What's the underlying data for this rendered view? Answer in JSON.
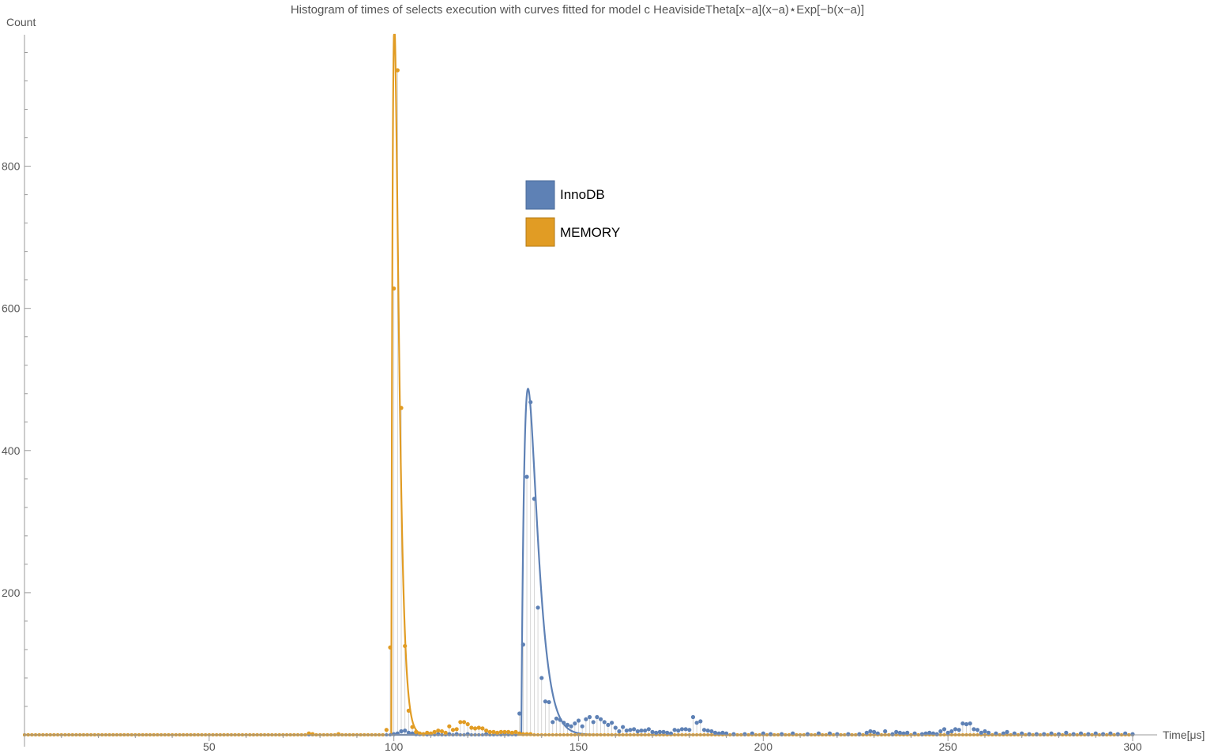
{
  "chart_data": {
    "type": "scatter",
    "title": "Histogram of times of selects execution with curves fitted for model c HeavisideTheta[x−a](x−a)⋆Exp[−b(x−a)]",
    "xlabel": "Time[μs]",
    "ylabel": "Count",
    "xlim": [
      0,
      300
    ],
    "ylim": [
      0,
      985
    ],
    "x_ticks": [
      50,
      100,
      150,
      200,
      250,
      300
    ],
    "y_ticks": [
      200,
      400,
      600,
      800
    ],
    "grid": false,
    "legend_position": "top-center",
    "series": [
      {
        "name": "InnoDB",
        "color": "#5e81b5",
        "points": [
          [
            100,
            1
          ],
          [
            101,
            2
          ],
          [
            102,
            5
          ],
          [
            103,
            6
          ],
          [
            104,
            3
          ],
          [
            105,
            2
          ],
          [
            106,
            1
          ],
          [
            107,
            1
          ],
          [
            108,
            1
          ],
          [
            110,
            1
          ],
          [
            112,
            1
          ],
          [
            115,
            1
          ],
          [
            117,
            1
          ],
          [
            120,
            1
          ],
          [
            125,
            1
          ],
          [
            128,
            1
          ],
          [
            130,
            1
          ],
          [
            132,
            1
          ],
          [
            134,
            30
          ],
          [
            135,
            127
          ],
          [
            136,
            363
          ],
          [
            137,
            468
          ],
          [
            138,
            332
          ],
          [
            139,
            179
          ],
          [
            140,
            80
          ],
          [
            141,
            47
          ],
          [
            142,
            46
          ],
          [
            143,
            18
          ],
          [
            144,
            23
          ],
          [
            145,
            21
          ],
          [
            146,
            17
          ],
          [
            147,
            14
          ],
          [
            148,
            12
          ],
          [
            149,
            16
          ],
          [
            150,
            20
          ],
          [
            151,
            12
          ],
          [
            152,
            22
          ],
          [
            153,
            25
          ],
          [
            154,
            18
          ],
          [
            155,
            25
          ],
          [
            156,
            22
          ],
          [
            157,
            18
          ],
          [
            158,
            14
          ],
          [
            159,
            17
          ],
          [
            160,
            10
          ],
          [
            161,
            5
          ],
          [
            162,
            11
          ],
          [
            163,
            6
          ],
          [
            164,
            7
          ],
          [
            165,
            8
          ],
          [
            166,
            5
          ],
          [
            167,
            6
          ],
          [
            168,
            6
          ],
          [
            169,
            8
          ],
          [
            170,
            4
          ],
          [
            171,
            3
          ],
          [
            172,
            4
          ],
          [
            173,
            4
          ],
          [
            174,
            3
          ],
          [
            175,
            2
          ],
          [
            176,
            7
          ],
          [
            177,
            6
          ],
          [
            178,
            8
          ],
          [
            179,
            8
          ],
          [
            180,
            7
          ],
          [
            181,
            25
          ],
          [
            182,
            17
          ],
          [
            183,
            19
          ],
          [
            184,
            7
          ],
          [
            185,
            6
          ],
          [
            186,
            5
          ],
          [
            187,
            3
          ],
          [
            188,
            2
          ],
          [
            189,
            3
          ],
          [
            190,
            2
          ],
          [
            192,
            1
          ],
          [
            195,
            1
          ],
          [
            197,
            2
          ],
          [
            200,
            2
          ],
          [
            202,
            1
          ],
          [
            205,
            1
          ],
          [
            208,
            2
          ],
          [
            212,
            1
          ],
          [
            215,
            2
          ],
          [
            218,
            2
          ],
          [
            220,
            1
          ],
          [
            223,
            1
          ],
          [
            226,
            1
          ],
          [
            228,
            3
          ],
          [
            229,
            5
          ],
          [
            230,
            4
          ],
          [
            231,
            2
          ],
          [
            233,
            5
          ],
          [
            235,
            1
          ],
          [
            236,
            4
          ],
          [
            237,
            3
          ],
          [
            238,
            2
          ],
          [
            239,
            3
          ],
          [
            241,
            2
          ],
          [
            243,
            1
          ],
          [
            244,
            2
          ],
          [
            245,
            3
          ],
          [
            246,
            2
          ],
          [
            247,
            1
          ],
          [
            248,
            5
          ],
          [
            249,
            8
          ],
          [
            250,
            3
          ],
          [
            251,
            5
          ],
          [
            252,
            8
          ],
          [
            253,
            7
          ],
          [
            254,
            16
          ],
          [
            255,
            15
          ],
          [
            256,
            16
          ],
          [
            257,
            8
          ],
          [
            258,
            7
          ],
          [
            259,
            3
          ],
          [
            260,
            5
          ],
          [
            261,
            3
          ],
          [
            263,
            2
          ],
          [
            265,
            2
          ],
          [
            266,
            4
          ],
          [
            268,
            2
          ],
          [
            270,
            2
          ],
          [
            272,
            1
          ],
          [
            274,
            1
          ],
          [
            276,
            1
          ],
          [
            278,
            2
          ],
          [
            280,
            1
          ],
          [
            282,
            3
          ],
          [
            284,
            1
          ],
          [
            286,
            2
          ],
          [
            288,
            1
          ],
          [
            290,
            2
          ],
          [
            292,
            1
          ],
          [
            294,
            2
          ],
          [
            296,
            1
          ],
          [
            298,
            2
          ],
          [
            300,
            1
          ]
        ],
        "fit": {
          "a": 134.5,
          "b": 0.55,
          "c": 728
        }
      },
      {
        "name": "MEMORY",
        "color": "#e19c24",
        "points": [
          [
            77,
            2
          ],
          [
            78,
            1
          ],
          [
            85,
            1
          ],
          [
            98,
            7
          ],
          [
            99,
            123
          ],
          [
            100,
            628
          ],
          [
            101,
            935
          ],
          [
            102,
            460
          ],
          [
            103,
            125
          ],
          [
            104,
            34
          ],
          [
            105,
            11
          ],
          [
            106,
            4
          ],
          [
            107,
            2
          ],
          [
            108,
            1
          ],
          [
            109,
            3
          ],
          [
            110,
            2
          ],
          [
            111,
            4
          ],
          [
            112,
            6
          ],
          [
            113,
            5
          ],
          [
            114,
            3
          ],
          [
            115,
            12
          ],
          [
            116,
            7
          ],
          [
            117,
            8
          ],
          [
            118,
            18
          ],
          [
            119,
            18
          ],
          [
            120,
            15
          ],
          [
            121,
            10
          ],
          [
            122,
            9
          ],
          [
            123,
            10
          ],
          [
            124,
            9
          ],
          [
            125,
            6
          ],
          [
            126,
            4
          ],
          [
            127,
            4
          ],
          [
            128,
            3
          ],
          [
            129,
            4
          ],
          [
            130,
            4
          ],
          [
            131,
            4
          ],
          [
            132,
            3
          ],
          [
            133,
            4
          ],
          [
            134,
            2
          ],
          [
            135,
            1
          ],
          [
            136,
            1
          ],
          [
            137,
            1
          ]
        ],
        "fit": {
          "a": 99.3,
          "b": 1.2,
          "c": 3255
        }
      }
    ]
  },
  "axes": {
    "x_tick_labels": [
      "50",
      "100",
      "150",
      "200",
      "250",
      "300"
    ],
    "y_tick_labels": [
      "200",
      "400",
      "600",
      "800"
    ]
  }
}
